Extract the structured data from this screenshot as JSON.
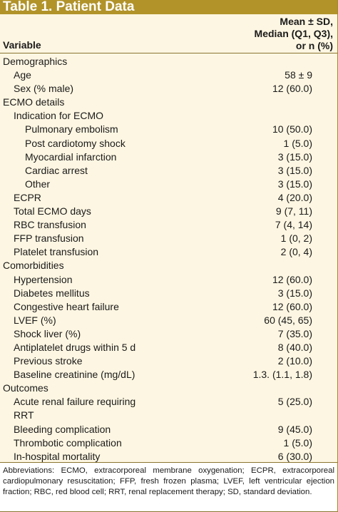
{
  "title": "Table 1.  Patient Data",
  "header": {
    "variable": "Variable",
    "stat_line1": "Mean ± SD,",
    "stat_line2": "Median (Q1, Q3),",
    "stat_line3": "or n (%)"
  },
  "rows": [
    {
      "label": "Demographics",
      "value": "",
      "indent": 0
    },
    {
      "label": "Age",
      "value": "58 ± 9",
      "indent": 1
    },
    {
      "label": "Sex (% male)",
      "value": "12 (60.0)",
      "indent": 1
    },
    {
      "label": "ECMO details",
      "value": "",
      "indent": 0
    },
    {
      "label": "Indication for ECMO",
      "value": "",
      "indent": 1
    },
    {
      "label": "Pulmonary embolism",
      "value": "10 (50.0)",
      "indent": 2
    },
    {
      "label": "Post cardiotomy shock",
      "value": "1 (5.0)",
      "indent": 2
    },
    {
      "label": "Myocardial infarction",
      "value": "3 (15.0)",
      "indent": 2
    },
    {
      "label": "Cardiac arrest",
      "value": "3 (15.0)",
      "indent": 2
    },
    {
      "label": "Other",
      "value": "3 (15.0)",
      "indent": 2
    },
    {
      "label": "ECPR",
      "value": "4 (20.0)",
      "indent": 1
    },
    {
      "label": "Total ECMO days",
      "value": "9 (7, 11)",
      "indent": 1
    },
    {
      "label": "RBC transfusion",
      "value": "7 (4, 14)",
      "indent": 1
    },
    {
      "label": "FFP transfusion",
      "value": "1 (0, 2)",
      "indent": 1
    },
    {
      "label": "Platelet transfusion",
      "value": "2 (0, 4)",
      "indent": 1
    },
    {
      "label": "Comorbidities",
      "value": "",
      "indent": 0
    },
    {
      "label": "Hypertension",
      "value": "12 (60.0)",
      "indent": 1
    },
    {
      "label": "Diabetes mellitus",
      "value": "3 (15.0)",
      "indent": 1
    },
    {
      "label": "Congestive heart failure",
      "value": "12 (60.0)",
      "indent": 1
    },
    {
      "label": "LVEF (%)",
      "value": "60 (45, 65)",
      "indent": 1
    },
    {
      "label": "Shock liver (%)",
      "value": "7 (35.0)",
      "indent": 1
    },
    {
      "label": "Antiplatelet drugs within 5 d",
      "value": "8 (40.0)",
      "indent": 1
    },
    {
      "label": "Previous stroke",
      "value": "2 (10.0)",
      "indent": 1
    },
    {
      "label": "Baseline creatinine (mg/dL)",
      "value": "1.3. (1.1, 1.8)",
      "indent": 1
    },
    {
      "label": "Outcomes",
      "value": "",
      "indent": 0
    },
    {
      "label": "Acute renal failure requiring",
      "value": "5 (25.0)",
      "indent": 1
    },
    {
      "label": "RRT",
      "value": "",
      "indent": 1
    },
    {
      "label": "Bleeding complication",
      "value": "9 (45.0)",
      "indent": 1
    },
    {
      "label": "Thrombotic complication",
      "value": "1 (5.0)",
      "indent": 1
    },
    {
      "label": "In-hospital mortality",
      "value": "6 (30.0)",
      "indent": 1
    }
  ],
  "footnote": "Abbreviations: ECMO, extracorporeal membrane oxygenation; ECPR, extracorporeal cardiopulmonary resuscitation; FFP, fresh frozen plasma; LVEF, left ventricular ejection fraction; RBC, red blood cell; RRT, renal replacement therapy; SD, standard deviation.",
  "colors": {
    "title_bar": "#b1932a",
    "table_background": "#fdf6e2",
    "rule": "#8a7530"
  }
}
